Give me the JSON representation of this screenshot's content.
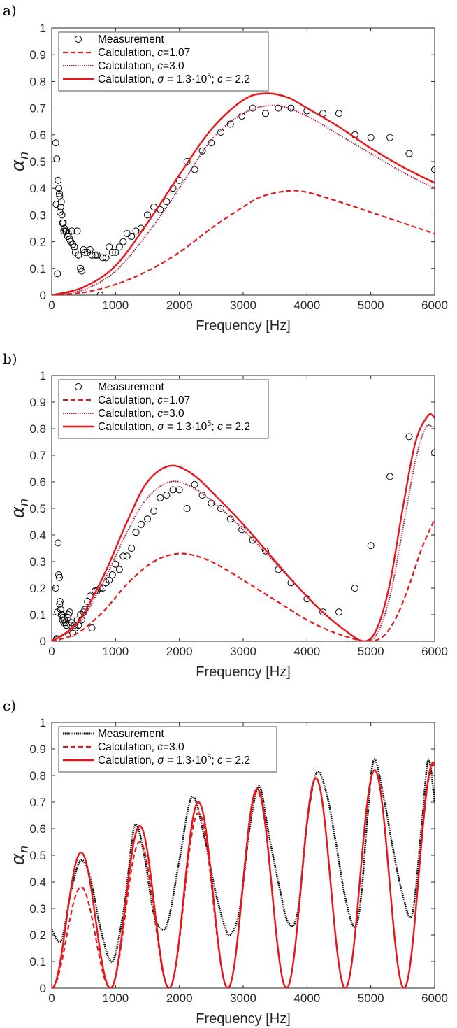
{
  "chart_data": [
    {
      "panel_label": "a)",
      "type": "line",
      "xlabel": "Frequency [Hz]",
      "ylabel": "α",
      "ylabel_sub": "n",
      "xlim": [
        0,
        6000
      ],
      "ylim": [
        0,
        1
      ],
      "xticks": [
        0,
        1000,
        2000,
        3000,
        4000,
        5000,
        6000
      ],
      "yticks": [
        0,
        0.1,
        0.2,
        0.3,
        0.4,
        0.5,
        0.6,
        0.7,
        0.8,
        0.9,
        1
      ],
      "legend_position": "top-left",
      "series": [
        {
          "name": "Measurement",
          "style": "markers",
          "color": "#000000",
          "x": [
            63,
            80,
            100,
            110,
            120,
            125,
            140,
            160,
            180,
            200,
            220,
            250,
            280,
            315,
            355,
            400,
            450,
            500,
            560,
            630,
            710,
            800,
            900,
            1000,
            1120,
            1250,
            1400,
            1600,
            1800,
            2000,
            2240,
            2500,
            2800,
            3150,
            3550,
            4000,
            4500,
            5000,
            5600,
            6000,
            70,
            90,
            130,
            150,
            170,
            190,
            230,
            260,
            300,
            330,
            370,
            420,
            470,
            520,
            600,
            680,
            760,
            850,
            950,
            1060,
            1180,
            1320,
            1500,
            1700,
            1900,
            2120,
            2360,
            2650,
            2980,
            3350,
            3750,
            4250,
            4750,
            5300
          ],
          "y": [
            0.57,
            0.51,
            0.43,
            0.4,
            0.38,
            0.37,
            0.33,
            0.3,
            0.27,
            0.25,
            0.24,
            0.22,
            0.21,
            0.24,
            0.18,
            0.24,
            0.1,
            0.17,
            0.16,
            0.15,
            0.15,
            0.14,
            0.18,
            0.16,
            0.2,
            0.22,
            0.25,
            0.33,
            0.35,
            0.43,
            0.47,
            0.57,
            0.64,
            0.7,
            0.7,
            0.69,
            0.68,
            0.59,
            0.53,
            0.47,
            0.34,
            0.08,
            0.31,
            0.35,
            0.27,
            0.24,
            0.24,
            0.23,
            0.2,
            0.19,
            0.16,
            0.15,
            0.09,
            0.16,
            0.17,
            0.15,
            0.0,
            0.14,
            0.16,
            0.18,
            0.23,
            0.24,
            0.3,
            0.32,
            0.4,
            0.5,
            0.54,
            0.61,
            0.67,
            0.68,
            0.7,
            0.68,
            0.6,
            0.59
          ]
        },
        {
          "name": "Calculation, c=1.07",
          "style": "dashed",
          "color": "#e31a1c",
          "x": [
            0,
            500,
            1000,
            1500,
            2000,
            2500,
            3000,
            3300,
            3700,
            4000,
            4500,
            5000,
            5500,
            6000
          ],
          "y": [
            0,
            0.01,
            0.04,
            0.09,
            0.16,
            0.25,
            0.33,
            0.37,
            0.39,
            0.385,
            0.35,
            0.31,
            0.27,
            0.23
          ]
        },
        {
          "name": "Calculation, c=3.0",
          "style": "dotted",
          "color": "#a52a4a",
          "x": [
            0,
            500,
            1000,
            1500,
            2000,
            2500,
            3000,
            3500,
            4000,
            4500,
            5000,
            5500,
            6000
          ],
          "y": [
            0,
            0.02,
            0.09,
            0.23,
            0.4,
            0.58,
            0.68,
            0.71,
            0.67,
            0.6,
            0.53,
            0.46,
            0.4
          ]
        },
        {
          "name": "Calculation, σ = 1.3·10⁵; c = 2.2",
          "style": "solid",
          "color": "#e8151b",
          "x": [
            0,
            500,
            1000,
            1500,
            2000,
            2500,
            3000,
            3350,
            3700,
            4000,
            4500,
            5000,
            5500,
            6000
          ],
          "y": [
            0,
            0.03,
            0.11,
            0.27,
            0.45,
            0.62,
            0.73,
            0.755,
            0.74,
            0.7,
            0.63,
            0.55,
            0.48,
            0.42
          ]
        }
      ]
    },
    {
      "panel_label": "b)",
      "type": "line",
      "xlabel": "Frequency [Hz]",
      "ylabel": "α",
      "ylabel_sub": "n",
      "xlim": [
        0,
        6000
      ],
      "ylim": [
        0,
        1
      ],
      "xticks": [
        0,
        1000,
        2000,
        3000,
        4000,
        5000,
        6000
      ],
      "yticks": [
        0,
        0.1,
        0.2,
        0.3,
        0.4,
        0.5,
        0.6,
        0.7,
        0.8,
        0.9,
        1
      ],
      "legend_position": "top-left",
      "series": [
        {
          "name": "Measurement",
          "style": "markers",
          "color": "#000000",
          "x": [
            63,
            80,
            100,
            110,
            120,
            125,
            140,
            160,
            180,
            200,
            220,
            250,
            280,
            315,
            355,
            400,
            450,
            500,
            560,
            630,
            710,
            800,
            900,
            1000,
            1120,
            1250,
            1400,
            1600,
            1800,
            2000,
            2240,
            2500,
            2800,
            3150,
            3550,
            4000,
            4500,
            5000,
            5600,
            6000,
            70,
            90,
            130,
            150,
            170,
            190,
            230,
            260,
            300,
            330,
            370,
            420,
            470,
            520,
            600,
            680,
            760,
            850,
            950,
            1060,
            1180,
            1320,
            1500,
            1700,
            1900,
            2120,
            2360,
            2650,
            2980,
            3350,
            3750,
            4250,
            4750,
            5300
          ],
          "y": [
            0.2,
            0.01,
            0.37,
            0.25,
            0.24,
            0.14,
            0.12,
            0.1,
            0.09,
            0.08,
            0.07,
            0.09,
            0.11,
            0.07,
            0.06,
            0.08,
            0.1,
            0.11,
            0.15,
            0.05,
            0.19,
            0.2,
            0.23,
            0.29,
            0.32,
            0.35,
            0.44,
            0.49,
            0.55,
            0.57,
            0.59,
            0.52,
            0.46,
            0.38,
            0.27,
            0.16,
            0.11,
            0.36,
            0.77,
            0.71,
            0.005,
            0.11,
            0.15,
            0.1,
            0.08,
            0.07,
            0.06,
            0.1,
            0.06,
            0.03,
            0.05,
            0.06,
            0.08,
            0.12,
            0.17,
            0.19,
            0.2,
            0.22,
            0.25,
            0.27,
            0.32,
            0.41,
            0.46,
            0.54,
            0.57,
            0.5,
            0.55,
            0.5,
            0.42,
            0.34,
            0.22,
            0.11,
            0.2,
            0.62
          ]
        },
        {
          "name": "Calculation, c=1.07",
          "style": "dashed",
          "color": "#e31a1c",
          "x": [
            0,
            400,
            800,
            1200,
            1600,
            2000,
            2400,
            2800,
            3200,
            3600,
            4000,
            4400,
            4800,
            5000,
            5200,
            5400,
            5600,
            5800,
            6000
          ],
          "y": [
            0,
            0.03,
            0.11,
            0.22,
            0.3,
            0.33,
            0.31,
            0.26,
            0.2,
            0.14,
            0.08,
            0.035,
            0.005,
            0.0,
            0.02,
            0.09,
            0.21,
            0.35,
            0.46
          ]
        },
        {
          "name": "Calculation, c=3.0",
          "style": "dotted",
          "color": "#a52a4a",
          "x": [
            0,
            400,
            800,
            1200,
            1500,
            1850,
            2200,
            2600,
            3000,
            3400,
            3800,
            4200,
            4600,
            4900,
            5100,
            5300,
            5500,
            5700,
            5850,
            5950,
            6000
          ],
          "y": [
            0,
            0.06,
            0.22,
            0.42,
            0.54,
            0.6,
            0.58,
            0.51,
            0.42,
            0.32,
            0.22,
            0.12,
            0.04,
            0.0,
            0.03,
            0.17,
            0.42,
            0.68,
            0.8,
            0.81,
            0.8
          ]
        },
        {
          "name": "Calculation, σ = 1.3·10⁵; c = 2.2",
          "style": "solid",
          "color": "#e8151b",
          "x": [
            0,
            400,
            800,
            1200,
            1500,
            1850,
            2200,
            2600,
            3000,
            3400,
            3800,
            4200,
            4600,
            4900,
            5100,
            5300,
            5500,
            5700,
            5900,
            6000
          ],
          "y": [
            0,
            0.07,
            0.24,
            0.46,
            0.6,
            0.66,
            0.63,
            0.54,
            0.44,
            0.33,
            0.22,
            0.12,
            0.04,
            0.0,
            0.05,
            0.22,
            0.5,
            0.75,
            0.85,
            0.84
          ]
        }
      ]
    },
    {
      "panel_label": "c)",
      "type": "line",
      "xlabel": "Frequency [Hz]",
      "ylabel": "α",
      "ylabel_sub": "n",
      "xlim": [
        0,
        6000
      ],
      "ylim": [
        0,
        1
      ],
      "xticks": [
        0,
        1000,
        2000,
        3000,
        4000,
        5000,
        6000
      ],
      "yticks": [
        0,
        0.1,
        0.2,
        0.3,
        0.4,
        0.5,
        0.6,
        0.7,
        0.8,
        0.9,
        1
      ],
      "legend_position": "top-left",
      "series": [
        {
          "name": "Measurement",
          "style": "measured",
          "color": "#000000",
          "x": [
            0,
            150,
            300,
            450,
            600,
            750,
            900,
            1000,
            1150,
            1300,
            1450,
            1600,
            1750,
            1850,
            2000,
            2200,
            2400,
            2550,
            2700,
            2800,
            2950,
            3100,
            3250,
            3400,
            3550,
            3700,
            3850,
            4000,
            4150,
            4300,
            4450,
            4600,
            4750,
            4850,
            4950,
            5050,
            5200,
            5350,
            5500,
            5650,
            5800,
            5900,
            6000
          ],
          "y": [
            0.22,
            0.18,
            0.36,
            0.48,
            0.42,
            0.24,
            0.11,
            0.13,
            0.33,
            0.61,
            0.5,
            0.28,
            0.22,
            0.28,
            0.48,
            0.72,
            0.56,
            0.38,
            0.24,
            0.2,
            0.3,
            0.6,
            0.76,
            0.58,
            0.4,
            0.25,
            0.28,
            0.62,
            0.81,
            0.74,
            0.55,
            0.34,
            0.23,
            0.35,
            0.65,
            0.86,
            0.72,
            0.52,
            0.35,
            0.28,
            0.62,
            0.86,
            0.7
          ]
        },
        {
          "name": "Calculation, c=3.0",
          "style": "dashed",
          "color": "#e31a1c",
          "period_hz": 920,
          "peaks": [
            0.38,
            0.55,
            0.66,
            0.74,
            0.79,
            0.82,
            0.84
          ],
          "phase_hz": 0
        },
        {
          "name": "Calculation, σ = 1.3·10⁵; c = 2.2",
          "style": "solid",
          "color": "#e8151b",
          "period_hz": 920,
          "peaks": [
            0.51,
            0.61,
            0.7,
            0.75,
            0.79,
            0.82,
            0.85
          ],
          "phase_hz": 0
        }
      ]
    }
  ],
  "legend_labels": {
    "measurement": "Measurement",
    "calc_a": "Calculation, ",
    "calc_c107": "c",
    "calc_c107_val": "=1.07",
    "calc_c30_val": "=3.0",
    "calc_sigma": "σ",
    "calc_sigma_val": " = 1.3·10",
    "calc_sigma_exp": "5",
    "calc_sigma_c": "; ",
    "calc_sigma_c_val": " = 2.2"
  }
}
